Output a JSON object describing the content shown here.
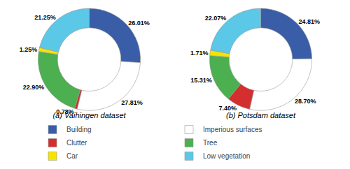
{
  "chart_data": [
    {
      "type": "donut",
      "title": "(a) Vaihingen dataset",
      "categories": [
        "Building",
        "Imperious surfaces",
        "Clutter",
        "Tree",
        "Car",
        "Low vegetation"
      ],
      "values": [
        26.01,
        27.81,
        0.78,
        22.9,
        1.25,
        21.25
      ],
      "value_labels": [
        "26.01%",
        "27.81%",
        "0.78%",
        "22.90%",
        "1.25%",
        "21.25%"
      ],
      "colors": [
        "#3a5da8",
        "#ffffff",
        "#d32f2f",
        "#4caf50",
        "#f5e400",
        "#5bc8e8"
      ],
      "data_labels": true,
      "legend": "bottom"
    },
    {
      "type": "donut",
      "title": "(b) Potsdam dataset",
      "categories": [
        "Building",
        "Imperious surfaces",
        "Clutter",
        "Tree",
        "Car",
        "Low vegetation"
      ],
      "values": [
        24.81,
        28.7,
        7.4,
        15.31,
        1.71,
        22.07
      ],
      "value_labels": [
        "24.81%",
        "28.70%",
        "7.40%",
        "15.31%",
        "1.71%",
        "22.07%"
      ],
      "colors": [
        "#3a5da8",
        "#ffffff",
        "#d32f2f",
        "#4caf50",
        "#f5e400",
        "#5bc8e8"
      ],
      "data_labels": true,
      "legend": "bottom"
    }
  ]
}
